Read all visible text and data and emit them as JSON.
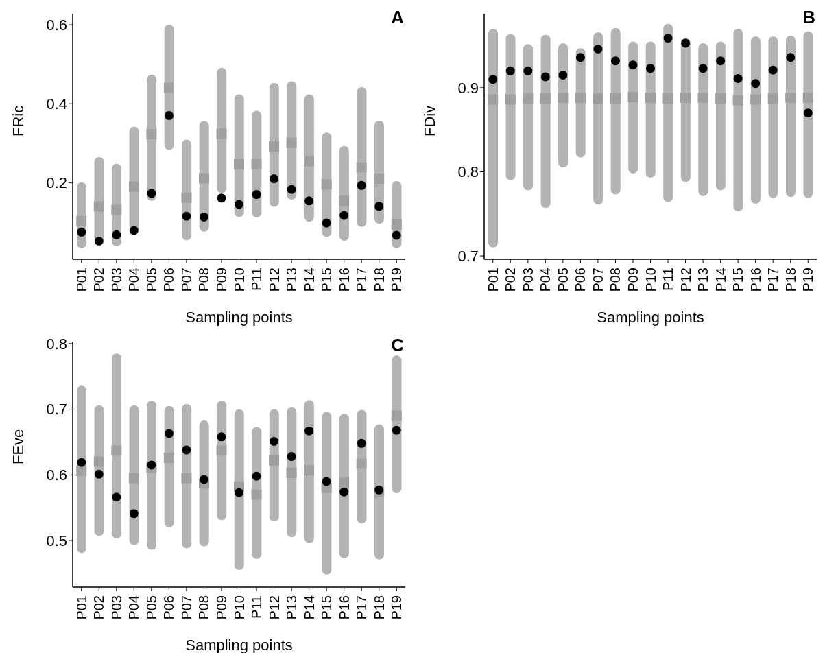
{
  "chart_data": [
    {
      "type": "bar",
      "annotations": [
        "A"
      ],
      "xlabel": "Sampling points",
      "ylabel": "FRic",
      "categories": [
        "P01",
        "P02",
        "P03",
        "P04",
        "P05",
        "P06",
        "P07",
        "P08",
        "P09",
        "P10",
        "P11",
        "P12",
        "P13",
        "P14",
        "P15",
        "P16",
        "P17",
        "P18",
        "P19"
      ],
      "series": [
        {
          "color": "#b3b3b3",
          "base": [
            0.034,
            0.045,
            0.039,
            0.075,
            0.154,
            0.283,
            0.054,
            0.076,
            0.174,
            0.113,
            0.112,
            0.139,
            0.157,
            0.101,
            0.063,
            0.053,
            0.088,
            0.096,
            0.034
          ],
          "values": [
            0.167,
            0.22,
            0.209,
            0.267,
            0.32,
            0.317,
            0.255,
            0.28,
            0.317,
            0.311,
            0.27,
            0.314,
            0.3,
            0.323,
            0.264,
            0.24,
            0.354,
            0.261,
            0.17
          ]
        },
        {
          "type": "scatter",
          "marker": "square",
          "color": "#a0a0a0",
          "values": [
            0.103,
            0.14,
            0.131,
            0.19,
            0.323,
            0.44,
            0.162,
            0.211,
            0.324,
            0.247,
            0.247,
            0.292,
            0.301,
            0.254,
            0.196,
            0.154,
            0.239,
            0.21,
            0.094
          ]
        },
        {
          "type": "scatter",
          "marker": "circle",
          "color": "#000000",
          "values": [
            0.075,
            0.052,
            0.068,
            0.079,
            0.173,
            0.37,
            0.115,
            0.113,
            0.161,
            0.145,
            0.17,
            0.21,
            0.183,
            0.154,
            0.098,
            0.117,
            0.193,
            0.14,
            0.067
          ]
        }
      ],
      "ylim": [
        0.006,
        0.628
      ],
      "yticks": [
        0.2,
        0.4,
        0.6
      ]
    },
    {
      "type": "bar",
      "annotations": [
        "B"
      ],
      "xlabel": "Sampling points",
      "ylabel": "FDiv",
      "categories": [
        "P01",
        "P02",
        "P03",
        "P04",
        "P05",
        "P06",
        "P07",
        "P08",
        "P09",
        "P10",
        "P11",
        "P12",
        "P13",
        "P14",
        "P15",
        "P16",
        "P17",
        "P18",
        "P19"
      ],
      "series": [
        {
          "color": "#b3b3b3",
          "base": [
            0.71,
            0.79,
            0.778,
            0.757,
            0.805,
            0.817,
            0.761,
            0.773,
            0.798,
            0.793,
            0.764,
            0.788,
            0.771,
            0.778,
            0.753,
            0.762,
            0.769,
            0.77,
            0.769
          ],
          "values": [
            0.26,
            0.174,
            0.174,
            0.206,
            0.148,
            0.13,
            0.205,
            0.198,
            0.157,
            0.162,
            0.212,
            0.171,
            0.182,
            0.177,
            0.217,
            0.199,
            0.192,
            0.192,
            0.198
          ]
        },
        {
          "type": "scatter",
          "marker": "square",
          "color": "#a0a0a0",
          "values": [
            0.886,
            0.886,
            0.887,
            0.887,
            0.888,
            0.888,
            0.887,
            0.887,
            0.889,
            0.888,
            0.887,
            0.888,
            0.888,
            0.887,
            0.885,
            0.886,
            0.887,
            0.888,
            0.888
          ]
        },
        {
          "type": "scatter",
          "marker": "circle",
          "color": "#000000",
          "values": [
            0.91,
            0.92,
            0.92,
            0.913,
            0.915,
            0.936,
            0.946,
            0.932,
            0.927,
            0.923,
            0.959,
            0.953,
            0.923,
            0.932,
            0.911,
            0.905,
            0.921,
            0.936,
            0.87
          ]
        }
      ],
      "ylim": [
        0.696,
        0.988
      ],
      "yticks": [
        0.7,
        0.8,
        0.9
      ]
    },
    {
      "type": "bar",
      "annotations": [
        "C"
      ],
      "xlabel": "Sampling points",
      "ylabel": "FEve",
      "categories": [
        "P01",
        "P02",
        "P03",
        "P04",
        "P05",
        "P06",
        "P07",
        "P08",
        "P09",
        "P10",
        "P11",
        "P12",
        "P13",
        "P14",
        "P15",
        "P16",
        "P17",
        "P18",
        "P19"
      ],
      "series": [
        {
          "color": "#b3b3b3",
          "base": [
            0.481,
            0.507,
            0.503,
            0.493,
            0.486,
            0.52,
            0.488,
            0.491,
            0.531,
            0.455,
            0.472,
            0.529,
            0.505,
            0.496,
            0.448,
            0.473,
            0.526,
            0.471,
            0.572
          ],
          "values": [
            0.255,
            0.199,
            0.282,
            0.213,
            0.227,
            0.185,
            0.22,
            0.192,
            0.182,
            0.245,
            0.201,
            0.171,
            0.198,
            0.218,
            0.248,
            0.22,
            0.173,
            0.206,
            0.21
          ]
        },
        {
          "type": "scatter",
          "marker": "square",
          "color": "#a0a0a0",
          "values": [
            0.606,
            0.62,
            0.637,
            0.595,
            0.611,
            0.626,
            0.595,
            0.587,
            0.637,
            0.582,
            0.57,
            0.622,
            0.603,
            0.607,
            0.58,
            0.588,
            0.617,
            0.574,
            0.69
          ]
        },
        {
          "type": "scatter",
          "marker": "circle",
          "color": "#000000",
          "values": [
            0.619,
            0.601,
            0.566,
            0.541,
            0.615,
            0.663,
            0.638,
            0.593,
            0.658,
            0.573,
            0.598,
            0.651,
            0.628,
            0.667,
            0.59,
            0.574,
            0.648,
            0.577,
            0.668
          ]
        }
      ],
      "ylim": [
        0.429,
        0.803
      ],
      "yticks": [
        0.5,
        0.6,
        0.7,
        0.8
      ]
    }
  ]
}
